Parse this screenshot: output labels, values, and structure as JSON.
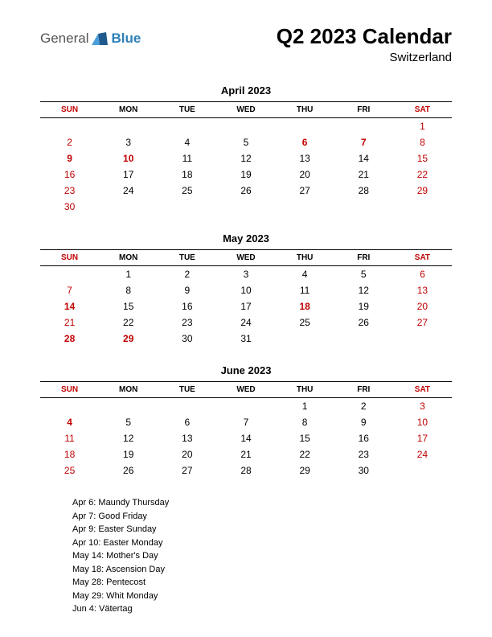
{
  "logo": {
    "text1": "General",
    "text2": "Blue"
  },
  "header": {
    "title": "Q2 2023 Calendar",
    "subtitle": "Switzerland"
  },
  "day_headers": [
    "SUN",
    "MON",
    "TUE",
    "WED",
    "THU",
    "FRI",
    "SAT"
  ],
  "months": [
    {
      "title": "April 2023",
      "weeks": [
        [
          null,
          null,
          null,
          null,
          null,
          null,
          {
            "d": 1,
            "w": true
          }
        ],
        [
          {
            "d": 2,
            "w": true
          },
          {
            "d": 3
          },
          {
            "d": 4
          },
          {
            "d": 5
          },
          {
            "d": 6,
            "h": true
          },
          {
            "d": 7,
            "h": true
          },
          {
            "d": 8,
            "w": true
          }
        ],
        [
          {
            "d": 9,
            "h": true
          },
          {
            "d": 10,
            "h": true
          },
          {
            "d": 11
          },
          {
            "d": 12
          },
          {
            "d": 13
          },
          {
            "d": 14
          },
          {
            "d": 15,
            "w": true
          }
        ],
        [
          {
            "d": 16,
            "w": true
          },
          {
            "d": 17
          },
          {
            "d": 18
          },
          {
            "d": 19
          },
          {
            "d": 20
          },
          {
            "d": 21
          },
          {
            "d": 22,
            "w": true
          }
        ],
        [
          {
            "d": 23,
            "w": true
          },
          {
            "d": 24
          },
          {
            "d": 25
          },
          {
            "d": 26
          },
          {
            "d": 27
          },
          {
            "d": 28
          },
          {
            "d": 29,
            "w": true
          }
        ],
        [
          {
            "d": 30,
            "w": true
          },
          null,
          null,
          null,
          null,
          null,
          null
        ]
      ]
    },
    {
      "title": "May 2023",
      "weeks": [
        [
          null,
          {
            "d": 1
          },
          {
            "d": 2
          },
          {
            "d": 3
          },
          {
            "d": 4
          },
          {
            "d": 5
          },
          {
            "d": 6,
            "w": true
          }
        ],
        [
          {
            "d": 7,
            "w": true
          },
          {
            "d": 8
          },
          {
            "d": 9
          },
          {
            "d": 10
          },
          {
            "d": 11
          },
          {
            "d": 12
          },
          {
            "d": 13,
            "w": true
          }
        ],
        [
          {
            "d": 14,
            "h": true
          },
          {
            "d": 15
          },
          {
            "d": 16
          },
          {
            "d": 17
          },
          {
            "d": 18,
            "h": true
          },
          {
            "d": 19
          },
          {
            "d": 20,
            "w": true
          }
        ],
        [
          {
            "d": 21,
            "w": true
          },
          {
            "d": 22
          },
          {
            "d": 23
          },
          {
            "d": 24
          },
          {
            "d": 25
          },
          {
            "d": 26
          },
          {
            "d": 27,
            "w": true
          }
        ],
        [
          {
            "d": 28,
            "h": true
          },
          {
            "d": 29,
            "h": true
          },
          {
            "d": 30
          },
          {
            "d": 31
          },
          null,
          null,
          null
        ]
      ]
    },
    {
      "title": "June 2023",
      "weeks": [
        [
          null,
          null,
          null,
          null,
          {
            "d": 1
          },
          {
            "d": 2
          },
          {
            "d": 3,
            "w": true
          }
        ],
        [
          {
            "d": 4,
            "h": true
          },
          {
            "d": 5
          },
          {
            "d": 6
          },
          {
            "d": 7
          },
          {
            "d": 8
          },
          {
            "d": 9
          },
          {
            "d": 10,
            "w": true
          }
        ],
        [
          {
            "d": 11,
            "w": true
          },
          {
            "d": 12
          },
          {
            "d": 13
          },
          {
            "d": 14
          },
          {
            "d": 15
          },
          {
            "d": 16
          },
          {
            "d": 17,
            "w": true
          }
        ],
        [
          {
            "d": 18,
            "w": true
          },
          {
            "d": 19
          },
          {
            "d": 20
          },
          {
            "d": 21
          },
          {
            "d": 22
          },
          {
            "d": 23
          },
          {
            "d": 24,
            "w": true
          }
        ],
        [
          {
            "d": 25,
            "w": true
          },
          {
            "d": 26
          },
          {
            "d": 27
          },
          {
            "d": 28
          },
          {
            "d": 29
          },
          {
            "d": 30
          },
          null
        ]
      ]
    }
  ],
  "holidays": [
    "Apr 6: Maundy Thursday",
    "Apr 7: Good Friday",
    "Apr 9: Easter Sunday",
    "Apr 10: Easter Monday",
    "May 14: Mother's Day",
    "May 18: Ascension Day",
    "May 28: Pentecost",
    "May 29: Whit Monday",
    "Jun 4: Vätertag"
  ],
  "colors": {
    "red": "#c00000",
    "black": "#000000",
    "logo_blue": "#2c7fb8",
    "logo_gray": "#555555",
    "background": "#ffffff"
  }
}
